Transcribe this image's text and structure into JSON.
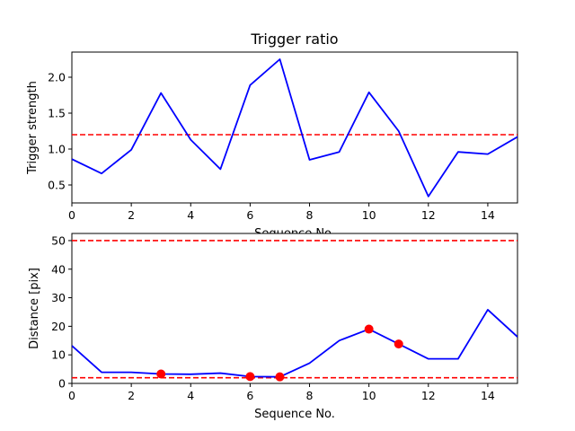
{
  "chart_data": [
    {
      "type": "line",
      "title": "Trigger ratio",
      "xlabel": "Sequence No.",
      "ylabel": "Trigger strength",
      "xlim": [
        0,
        15
      ],
      "ylim": [
        0.25,
        2.35
      ],
      "xticks": [
        0,
        2,
        4,
        6,
        8,
        10,
        12,
        14
      ],
      "yticks": [
        0.5,
        1.0,
        1.5,
        2.0
      ],
      "ytick_labels": [
        "0.5",
        "1.0",
        "1.5",
        "2.0"
      ],
      "grid": false,
      "series": [
        {
          "color": "#0000ff",
          "x": [
            0,
            1,
            2,
            3,
            4,
            5,
            6,
            7,
            8,
            9,
            10,
            11,
            12,
            13,
            14,
            15
          ],
          "y": [
            0.86,
            0.66,
            0.99,
            1.78,
            1.13,
            0.72,
            1.89,
            2.25,
            0.85,
            0.96,
            1.79,
            1.25,
            0.34,
            0.96,
            0.93,
            1.17
          ]
        }
      ],
      "hlines": [
        {
          "y": 1.2,
          "color": "#ff0000",
          "style": "dashed"
        }
      ]
    },
    {
      "type": "line",
      "title": "",
      "xlabel": "Sequence No.",
      "ylabel": "Distance [pix]",
      "xlim": [
        0,
        15
      ],
      "ylim": [
        0,
        52.5
      ],
      "xticks": [
        0,
        2,
        4,
        6,
        8,
        10,
        12,
        14
      ],
      "yticks": [
        0,
        10,
        20,
        30,
        40,
        50
      ],
      "ytick_labels": [
        "0",
        "10",
        "20",
        "30",
        "40",
        "50"
      ],
      "grid": false,
      "series": [
        {
          "color": "#0000ff",
          "x": [
            0,
            1,
            2,
            3,
            4,
            5,
            6,
            7,
            8,
            9,
            10,
            11,
            12,
            13,
            14,
            15
          ],
          "y": [
            13.2,
            3.9,
            3.9,
            3.3,
            3.2,
            3.6,
            2.4,
            2.3,
            7.1,
            15.0,
            19.0,
            13.8,
            8.6,
            8.6,
            25.8,
            16.3
          ]
        }
      ],
      "markers": {
        "color": "#ff0000",
        "x": [
          3,
          6,
          7,
          10,
          11
        ],
        "y": [
          3.3,
          2.4,
          2.3,
          19.0,
          13.8
        ]
      },
      "hlines": [
        {
          "y": 50,
          "color": "#ff0000",
          "style": "dashed"
        },
        {
          "y": 2,
          "color": "#ff0000",
          "style": "dashed"
        }
      ]
    }
  ]
}
